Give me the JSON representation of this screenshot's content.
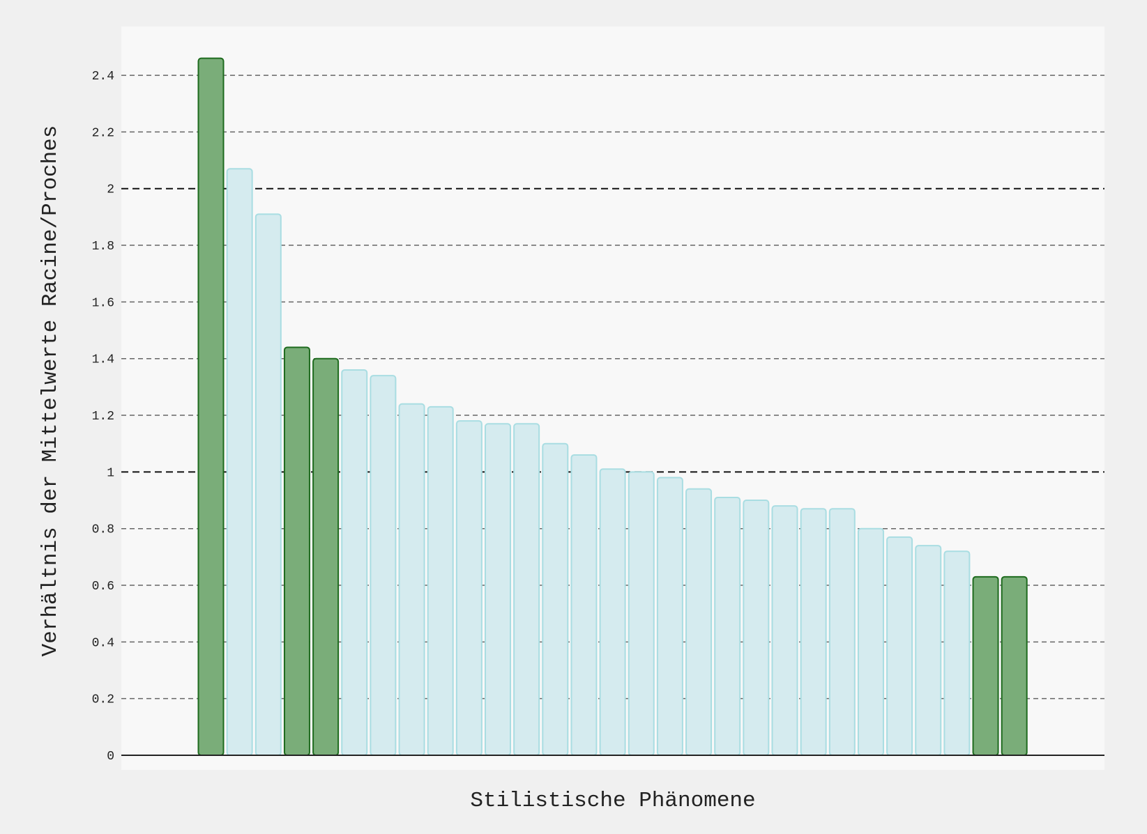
{
  "chart_data": {
    "type": "bar",
    "title": "",
    "xlabel": "Stilistische Phänomene",
    "ylabel": "Verhältnis der Mittelwerte Racine/Proches",
    "ylim": [
      0,
      2.56
    ],
    "yticks": [
      0,
      0.2,
      0.4,
      0.6,
      0.8,
      1,
      1.2,
      1.4,
      1.6,
      1.8,
      2,
      2.2,
      2.4
    ],
    "yticks_text": [
      "0",
      "0.2",
      "0.4",
      "0.6",
      "0.8",
      "1",
      "1.2",
      "1.4",
      "1.6",
      "1.8",
      "2",
      "2.2",
      "2.4"
    ],
    "reference_lines": [
      1,
      2
    ],
    "grid": true,
    "legend": "none",
    "colors": {
      "highlight_fill": "#7aad79",
      "highlight_stroke": "#1e6b1e",
      "normal_fill": "#d5ebef",
      "normal_stroke": "#a9dde2",
      "plot_background": "#f8f8f8",
      "figure_background": "#f0f0f0"
    },
    "values": [
      2.46,
      2.07,
      1.91,
      1.44,
      1.4,
      1.36,
      1.34,
      1.24,
      1.23,
      1.18,
      1.17,
      1.17,
      1.1,
      1.06,
      1.01,
      1.0,
      0.98,
      0.94,
      0.91,
      0.9,
      0.88,
      0.87,
      0.87,
      0.8,
      0.77,
      0.74,
      0.72,
      0.63,
      0.63
    ],
    "highlighted": [
      true,
      false,
      false,
      true,
      true,
      false,
      false,
      false,
      false,
      false,
      false,
      false,
      false,
      false,
      false,
      false,
      false,
      false,
      false,
      false,
      false,
      false,
      false,
      false,
      false,
      false,
      false,
      true,
      true
    ]
  }
}
